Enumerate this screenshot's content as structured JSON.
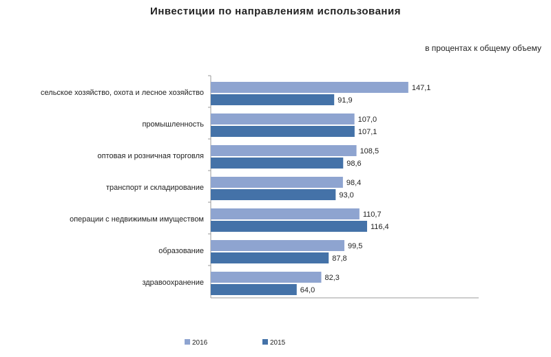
{
  "chart_data": {
    "type": "bar",
    "orientation": "horizontal",
    "title": "Инвестиции  по направлениям  использования",
    "subtitle": "в процентах к общему объему",
    "categories": [
      "сельское хозяйство, охота и лесное хозяйство",
      "промышленность",
      "оптовая и розничная торговля",
      "транспорт и складирование",
      "операции с недвижимым имуществом",
      "образование",
      "здравоохранение"
    ],
    "series": [
      {
        "name": "2016",
        "color": "#8EA4D0",
        "values": [
          147.1,
          107.0,
          108.5,
          98.4,
          110.7,
          99.5,
          82.3
        ],
        "labels": [
          "147,1",
          "107,0",
          "108,5",
          "98,4",
          "110,7",
          "99,5",
          "82,3"
        ]
      },
      {
        "name": "2015",
        "color": "#4472A8",
        "values": [
          91.9,
          107.1,
          98.6,
          93.0,
          116.4,
          87.8,
          64.0
        ],
        "labels": [
          "91,9",
          "107,1",
          "98,6",
          "93,0",
          "116,4",
          "87,8",
          "64,0"
        ]
      }
    ],
    "xlim": [
      0,
      150
    ],
    "grid": false,
    "legend_position": "bottom"
  }
}
